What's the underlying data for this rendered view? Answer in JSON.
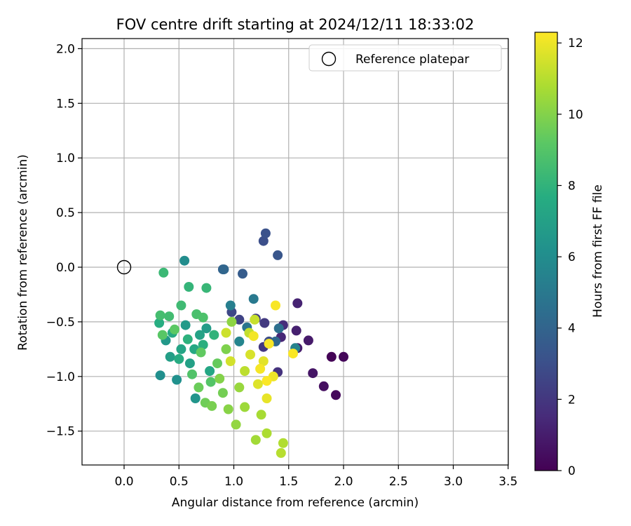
{
  "chart_data": {
    "type": "scatter",
    "title": "FOV centre drift starting at 2024/12/11 18:33:02",
    "xlabel": "Angular distance from reference (arcmin)",
    "ylabel": "Rotation from reference (arcmin)",
    "xlim": [
      -0.39,
      3.5
    ],
    "ylim": [
      -1.82,
      2.1
    ],
    "xticks": [
      "0.0",
      "0.5",
      "1.0",
      "1.5",
      "2.0",
      "2.5",
      "3.0",
      "3.5"
    ],
    "xtick_values": [
      0,
      0.5,
      1.0,
      1.5,
      2.0,
      2.5,
      3.0,
      3.5
    ],
    "yticks": [
      "2.0",
      "1.5",
      "1.0",
      "0.5",
      "0.0",
      "−0.5",
      "−1.0",
      "−1.5"
    ],
    "ytick_values": [
      2.0,
      1.5,
      1.0,
      0.5,
      0.0,
      -0.5,
      -1.0,
      -1.5
    ],
    "grid": true,
    "legend": {
      "placement": "top-right",
      "entries": [
        "Reference platepar"
      ]
    },
    "reference_point": {
      "x": 0.0,
      "y": 0.0
    },
    "colorbar": {
      "label": "Hours from first FF file",
      "range": [
        0,
        12.3
      ],
      "ticks": [
        "0",
        "2",
        "4",
        "6",
        "8",
        "10",
        "12"
      ],
      "tick_values": [
        0,
        2,
        4,
        6,
        8,
        10,
        12
      ],
      "colormap": "viridis"
    },
    "points": [
      [
        1.89,
        -0.82,
        0.1
      ],
      [
        2.0,
        -0.82,
        0.2
      ],
      [
        1.93,
        -1.17,
        0.3
      ],
      [
        1.82,
        -1.09,
        0.5
      ],
      [
        1.72,
        -0.97,
        0.7
      ],
      [
        1.68,
        -0.67,
        0.9
      ],
      [
        1.58,
        -0.74,
        1.0
      ],
      [
        1.57,
        -0.58,
        1.1
      ],
      [
        1.58,
        -0.33,
        1.2
      ],
      [
        1.43,
        -0.64,
        1.4
      ],
      [
        1.45,
        -0.53,
        1.6
      ],
      [
        1.4,
        -0.96,
        1.8
      ],
      [
        1.27,
        -0.73,
        2.0
      ],
      [
        1.28,
        -0.51,
        2.1
      ],
      [
        1.2,
        -0.47,
        2.3
      ],
      [
        1.05,
        -0.48,
        2.5
      ],
      [
        0.98,
        -0.41,
        2.7
      ],
      [
        1.32,
        -0.68,
        2.9
      ],
      [
        1.27,
        0.24,
        3.0
      ],
      [
        1.29,
        0.31,
        3.1
      ],
      [
        1.4,
        0.11,
        3.3
      ],
      [
        1.08,
        -0.06,
        3.6
      ],
      [
        0.9,
        -0.02,
        3.9
      ],
      [
        0.91,
        -0.02,
        4.1
      ],
      [
        1.38,
        -0.68,
        4.2
      ],
      [
        1.41,
        -0.56,
        4.5
      ],
      [
        1.12,
        -0.55,
        4.8
      ],
      [
        1.18,
        -0.29,
        5.0
      ],
      [
        0.97,
        -0.35,
        5.3
      ],
      [
        1.56,
        -0.74,
        5.5
      ],
      [
        1.05,
        -0.68,
        5.6
      ],
      [
        0.55,
        0.06,
        6.0
      ],
      [
        0.33,
        -0.99,
        6.1
      ],
      [
        0.48,
        -1.03,
        6.2
      ],
      [
        0.65,
        -1.2,
        6.4
      ],
      [
        0.38,
        -0.67,
        6.6
      ],
      [
        0.56,
        -0.53,
        6.7
      ],
      [
        0.75,
        -0.56,
        6.8
      ],
      [
        0.42,
        -0.82,
        6.9
      ],
      [
        0.6,
        -0.88,
        7.0
      ],
      [
        0.69,
        -0.62,
        7.1
      ],
      [
        0.52,
        -0.75,
        7.2
      ],
      [
        0.78,
        -0.95,
        7.3
      ],
      [
        0.64,
        -0.75,
        7.4
      ],
      [
        0.44,
        -0.6,
        7.5
      ],
      [
        0.5,
        -0.84,
        7.6
      ],
      [
        0.32,
        -0.51,
        7.7
      ],
      [
        0.72,
        -0.71,
        7.8
      ],
      [
        0.58,
        -0.66,
        7.9
      ],
      [
        0.82,
        -0.62,
        8.0
      ],
      [
        0.59,
        -0.18,
        8.1
      ],
      [
        0.75,
        -0.19,
        8.2
      ],
      [
        0.36,
        -0.05,
        8.3
      ],
      [
        0.52,
        -0.35,
        8.4
      ],
      [
        0.41,
        -0.45,
        8.5
      ],
      [
        0.33,
        -0.44,
        8.6
      ],
      [
        0.66,
        -0.43,
        8.7
      ],
      [
        0.72,
        -0.46,
        8.8
      ],
      [
        0.62,
        -0.98,
        8.9
      ],
      [
        0.79,
        -1.05,
        9.0
      ],
      [
        0.35,
        -0.62,
        9.1
      ],
      [
        0.46,
        -0.57,
        9.2
      ],
      [
        0.7,
        -0.78,
        9.3
      ],
      [
        0.85,
        -0.88,
        9.4
      ],
      [
        0.68,
        -1.1,
        9.5
      ],
      [
        0.74,
        -1.24,
        9.6
      ],
      [
        0.9,
        -1.15,
        9.7
      ],
      [
        0.8,
        -1.27,
        9.8
      ],
      [
        0.93,
        -0.75,
        9.9
      ],
      [
        0.87,
        -1.02,
        10.0
      ],
      [
        0.95,
        -1.3,
        10.1
      ],
      [
        0.98,
        -0.5,
        10.2
      ],
      [
        1.02,
        -1.44,
        10.3
      ],
      [
        1.05,
        -1.1,
        10.4
      ],
      [
        1.1,
        -1.28,
        10.5
      ],
      [
        1.2,
        -1.58,
        10.6
      ],
      [
        1.25,
        -1.35,
        10.7
      ],
      [
        1.3,
        -1.52,
        10.8
      ],
      [
        1.45,
        -1.61,
        10.9
      ],
      [
        1.43,
        -1.7,
        11.0
      ],
      [
        1.1,
        -0.95,
        11.1
      ],
      [
        1.14,
        -0.6,
        11.2
      ],
      [
        1.19,
        -0.48,
        11.3
      ],
      [
        0.93,
        -0.6,
        11.4
      ],
      [
        0.97,
        -0.86,
        11.5
      ],
      [
        1.15,
        -0.8,
        11.6
      ],
      [
        1.22,
        -1.07,
        11.7
      ],
      [
        1.27,
        -0.86,
        11.8
      ],
      [
        1.3,
        -1.2,
        11.9
      ],
      [
        1.36,
        -1.0,
        12.0
      ],
      [
        1.18,
        -0.63,
        12.1
      ],
      [
        1.24,
        -0.93,
        12.15
      ],
      [
        1.32,
        -0.7,
        12.2
      ],
      [
        1.38,
        -0.35,
        12.2
      ],
      [
        1.54,
        -0.79,
        12.25
      ],
      [
        1.3,
        -1.04,
        12.25
      ]
    ]
  }
}
